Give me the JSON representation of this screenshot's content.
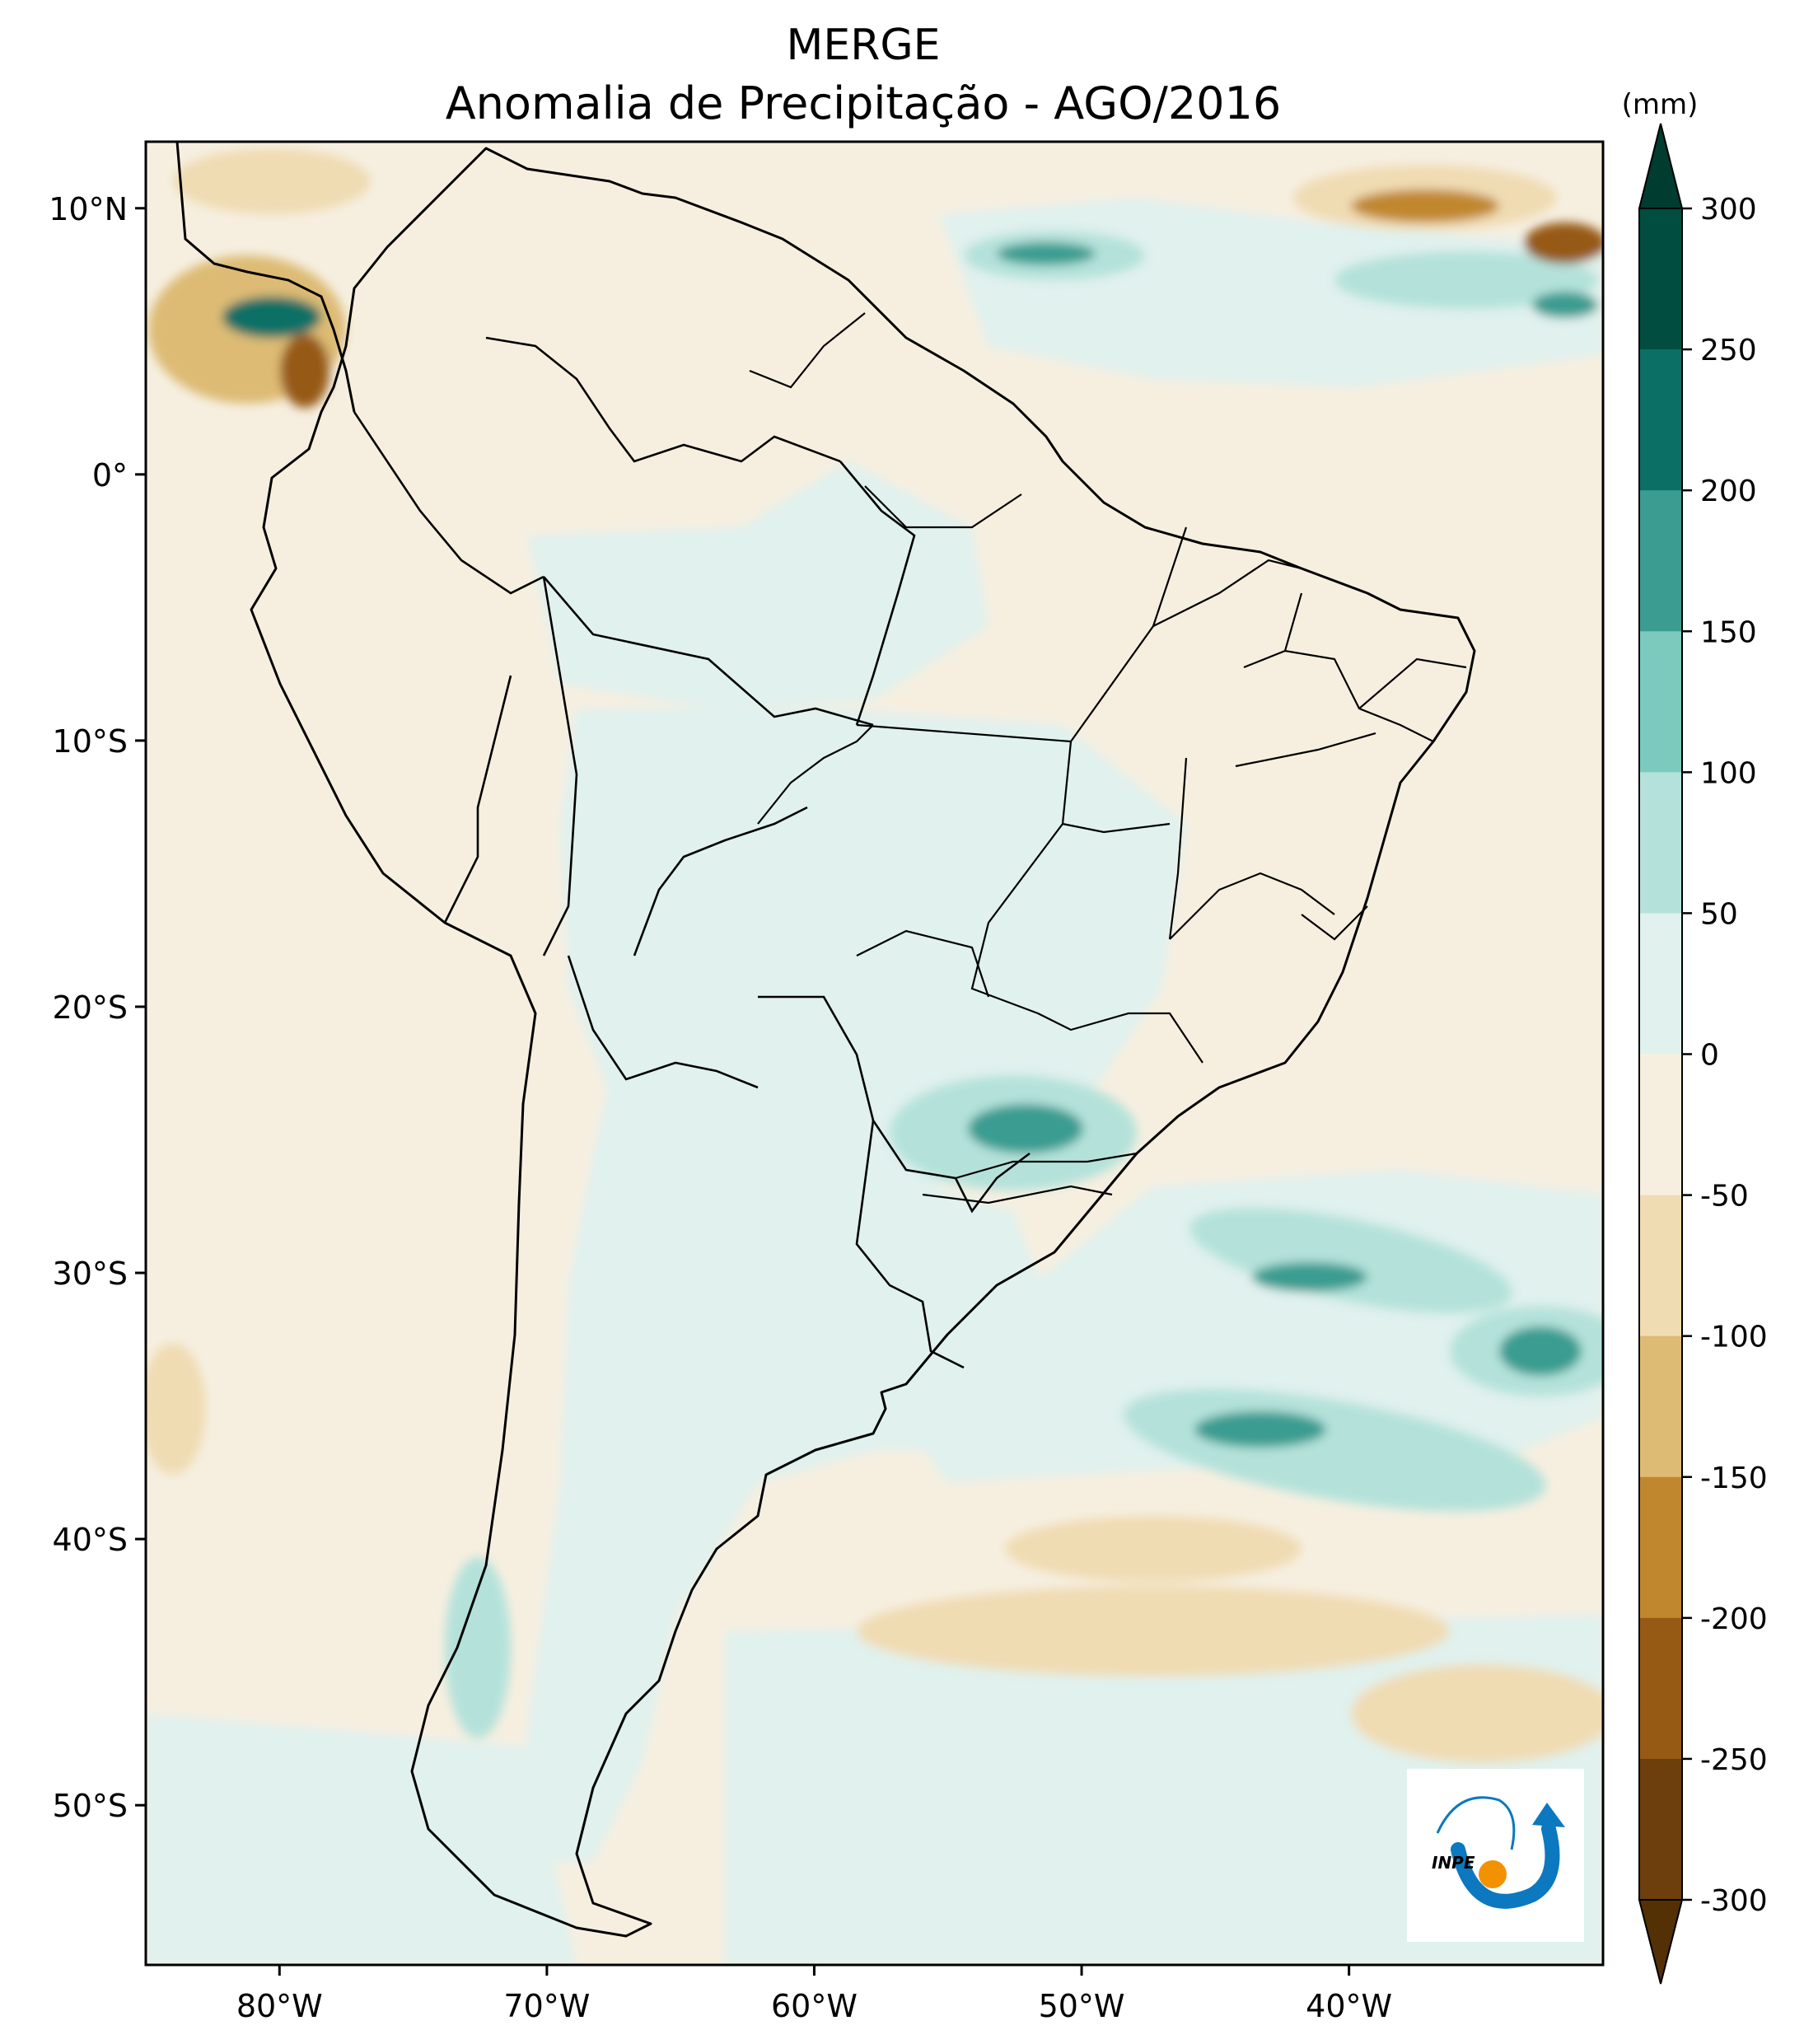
{
  "title": {
    "line1": "MERGE",
    "line2": "Anomalia de Precipitação - AGO/2016"
  },
  "colorbar": {
    "unit": "(mm)",
    "levels": [
      300,
      250,
      200,
      150,
      100,
      50,
      0,
      -50,
      -100,
      -150,
      -200,
      -250,
      -300
    ],
    "labels": [
      "300",
      "250",
      "200",
      "150",
      "100",
      "50",
      "0",
      "-50",
      "-100",
      "-150",
      "-200",
      "-250",
      "-300"
    ],
    "colors": [
      "#014e40",
      "#0c6f66",
      "#3b9c91",
      "#7cc9bd",
      "#b4e2da",
      "#e0f1ee",
      "#f6efe0",
      "#f0dcb3",
      "#ddbb74",
      "#c1872e",
      "#975a15",
      "#6c3f0d"
    ],
    "over_color": "#003c30",
    "under_color": "#543005"
  },
  "axes": {
    "lon_labels": [
      "80°W",
      "70°W",
      "60°W",
      "50°W",
      "40°W"
    ],
    "lat_labels": [
      "10°N",
      "0°",
      "10°S",
      "20°S",
      "30°S",
      "40°S",
      "50°S"
    ]
  },
  "logo": {
    "text": "INPE",
    "primary_color": "#0b78bf",
    "accent_color": "#f39200"
  }
}
